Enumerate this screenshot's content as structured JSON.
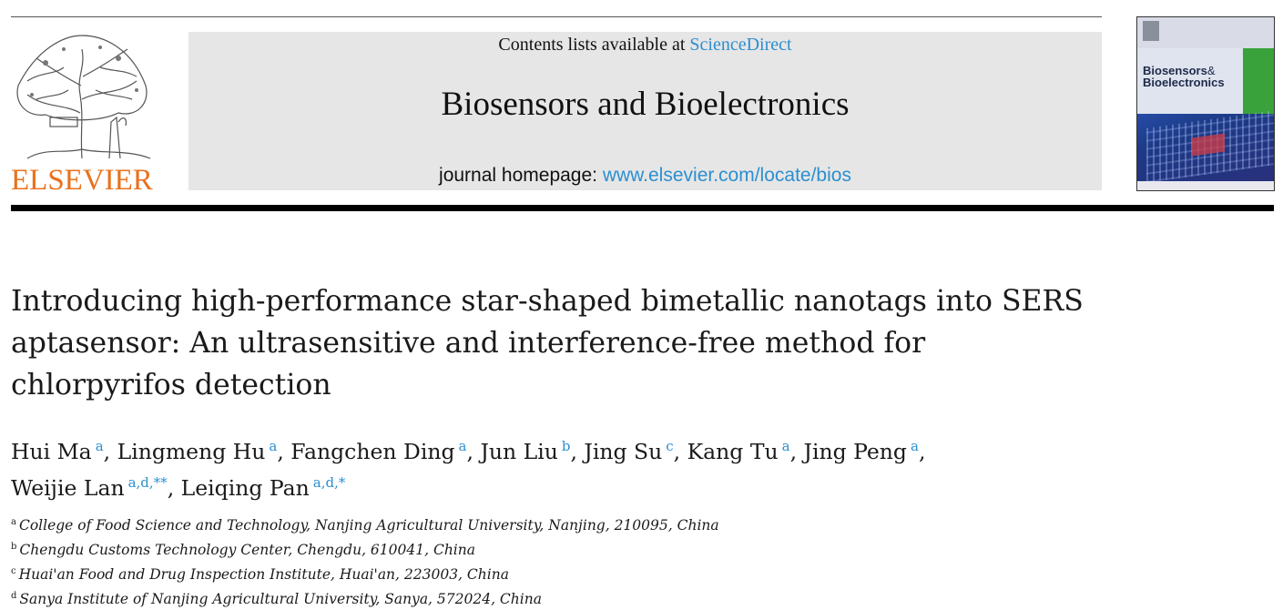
{
  "publisher": {
    "name": "ELSEVIER"
  },
  "masthead": {
    "contents_prefix": "Contents lists available at ",
    "contents_link": "ScienceDirect",
    "journal_title": "Biosensors and Bioelectronics",
    "homepage_prefix": "journal homepage: ",
    "homepage_url": "www.elsevier.com/locate/bios"
  },
  "cover": {
    "title_line1": "Biosensors",
    "title_amp": "&",
    "title_line2": "Bioelectronics"
  },
  "article": {
    "title_line1": "Introducing high-performance star-shaped bimetallic nanotags into SERS",
    "title_line2": "aptasensor: An ultrasensitive and interference-free method for",
    "title_line3": "chlorpyrifos detection",
    "authors": [
      {
        "name": "Hui Ma",
        "sup": "a"
      },
      {
        "name": "Lingmeng Hu",
        "sup": "a"
      },
      {
        "name": "Fangchen Ding",
        "sup": "a"
      },
      {
        "name": "Jun Liu",
        "sup": "b"
      },
      {
        "name": "Jing Su",
        "sup": "c"
      },
      {
        "name": "Kang Tu",
        "sup": "a"
      },
      {
        "name": "Jing Peng",
        "sup": "a"
      },
      {
        "name": "Weijie Lan",
        "sup": "a,d,**"
      },
      {
        "name": "Leiqing Pan",
        "sup": "a,d,*"
      }
    ],
    "affiliations": [
      {
        "mark": "a",
        "text": "College of Food Science and Technology, Nanjing Agricultural University, Nanjing, 210095, China"
      },
      {
        "mark": "b",
        "text": "Chengdu Customs Technology Center, Chengdu, 610041, China"
      },
      {
        "mark": "c",
        "text": "Huai'an Food and Drug Inspection Institute, Huai'an, 223003, China"
      },
      {
        "mark": "d",
        "text": "Sanya Institute of Nanjing Agricultural University, Sanya, 572024, China"
      }
    ]
  },
  "colors": {
    "link": "#2b8fd0",
    "publisher_orange": "#e9711c",
    "masthead_bg": "#e6e6e6"
  }
}
